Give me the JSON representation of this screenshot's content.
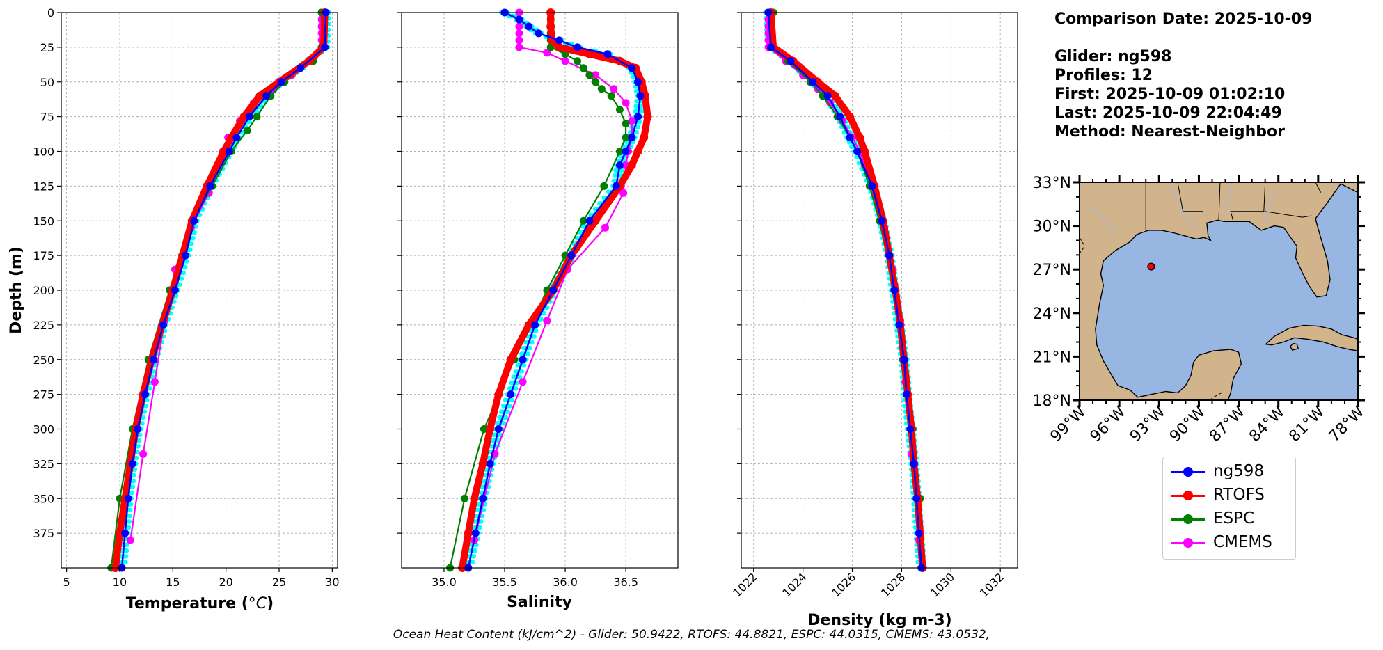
{
  "info": {
    "comparison_date": "Comparison Date: 2025-10-09",
    "glider": "Glider: ng598",
    "profiles": "Profiles: 12",
    "first": "First: 2025-10-09 01:02:10",
    "last": "Last: 2025-10-09 22:04:49",
    "method": "Method: Nearest-Neighbor"
  },
  "footer": "Ocean Heat Content (kJ/cm^2) - Glider: 50.9422,  RTOFS: 44.8821,  ESPC: 44.0315,  CMEMS: 43.0532,",
  "legend": [
    {
      "label": "ng598",
      "color": "#0000ff"
    },
    {
      "label": "RTOFS",
      "color": "#ff0000"
    },
    {
      "label": "ESPC",
      "color": "#008000"
    },
    {
      "label": "CMEMS",
      "color": "#ff00ff"
    }
  ],
  "map": {
    "lat_ticks": [
      "33°N",
      "30°N",
      "27°N",
      "24°N",
      "21°N",
      "18°N"
    ],
    "lon_ticks": [
      "99°W",
      "96°W",
      "93°W",
      "90°W",
      "87°W",
      "84°W",
      "81°W",
      "78°W"
    ],
    "lat_range": [
      18,
      33
    ],
    "lon_range": [
      -99,
      -78
    ],
    "marker": {
      "lon": -93.6,
      "lat": 27.2,
      "color": "#ff0000"
    },
    "land_color": "#d2b48c",
    "ocean_color": "#97b6e1"
  },
  "chart_data": [
    {
      "type": "line",
      "xlabel": "Temperature (°C)",
      "ylabel": "Depth (m)",
      "xlim": [
        4.5,
        30.5
      ],
      "ylim": [
        400,
        0
      ],
      "xticks": [
        5,
        10,
        15,
        20,
        25,
        30
      ],
      "yticks": [
        0,
        25,
        50,
        75,
        100,
        125,
        150,
        175,
        200,
        225,
        250,
        275,
        300,
        325,
        350,
        375
      ],
      "grid": true,
      "series": [
        {
          "name": "ng598",
          "color": "#0000ff",
          "depth": [
            0,
            25,
            40,
            50,
            60,
            75,
            90,
            100,
            125,
            150,
            175,
            200,
            225,
            250,
            275,
            300,
            325,
            350,
            375,
            400
          ],
          "values": [
            29.4,
            29.3,
            27,
            25.2,
            23.8,
            22.2,
            21,
            20.3,
            18.5,
            17,
            16.2,
            15.2,
            14.1,
            13.2,
            12.4,
            11.7,
            11.2,
            10.8,
            10.5,
            10.2
          ]
        },
        {
          "name": "RTOFS",
          "color": "#ff0000",
          "depth": [
            0,
            25,
            35,
            50,
            60,
            75,
            90,
            100,
            125,
            150,
            175,
            200,
            225,
            250,
            275,
            300,
            325,
            350,
            375,
            400
          ],
          "values": [
            29.3,
            29.2,
            27.8,
            25,
            23.2,
            21.7,
            20.5,
            19.8,
            18.2,
            16.8,
            15.9,
            15,
            14,
            13,
            12.2,
            11.5,
            11,
            10.5,
            10,
            9.6
          ]
        },
        {
          "name": "ESPC",
          "color": "#008000",
          "depth": [
            0,
            25,
            35,
            50,
            60,
            75,
            85,
            100,
            125,
            150,
            200,
            250,
            300,
            350,
            400
          ],
          "values": [
            29,
            29,
            28.2,
            25.5,
            24.2,
            22.9,
            22,
            20.5,
            18.7,
            16.8,
            14.7,
            12.7,
            11.2,
            10,
            9.2
          ]
        },
        {
          "name": "CMEMS",
          "color": "#ff00ff",
          "depth": [
            0,
            5,
            10,
            15,
            20,
            25,
            35,
            45,
            55,
            65,
            78,
            90,
            100,
            110,
            130,
            155,
            185,
            222,
            266,
            318,
            380
          ],
          "values": [
            29,
            29,
            29,
            29,
            29,
            29,
            28.2,
            26.2,
            24.5,
            22.6,
            21.3,
            20.2,
            19.7,
            19.2,
            18.4,
            16.7,
            15.2,
            14.2,
            13.3,
            12.2,
            11
          ]
        }
      ]
    },
    {
      "type": "line",
      "xlabel": "Salinity",
      "xlim": [
        34.65,
        36.93
      ],
      "ylim": [
        400,
        0
      ],
      "xticks": [
        35.0,
        35.5,
        36.0,
        36.5
      ],
      "yticks": [
        0,
        25,
        50,
        75,
        100,
        125,
        150,
        175,
        200,
        225,
        250,
        275,
        300,
        325,
        350,
        375
      ],
      "grid": true,
      "series": [
        {
          "name": "ng598",
          "color": "#0000ff",
          "depth": [
            0,
            5,
            10,
            15,
            20,
            25,
            30,
            40,
            50,
            60,
            75,
            90,
            100,
            110,
            125,
            150,
            175,
            200,
            225,
            250,
            275,
            300,
            325,
            350,
            375,
            400
          ],
          "values": [
            35.5,
            35.62,
            35.7,
            35.78,
            35.95,
            36.1,
            36.35,
            36.55,
            36.6,
            36.62,
            36.6,
            36.55,
            36.5,
            36.45,
            36.42,
            36.2,
            36.05,
            35.9,
            35.75,
            35.65,
            35.55,
            35.45,
            35.38,
            35.32,
            35.26,
            35.2
          ]
        },
        {
          "name": "RTOFS",
          "color": "#ff0000",
          "depth": [
            0,
            10,
            20,
            25,
            30,
            35,
            40,
            50,
            60,
            75,
            90,
            100,
            110,
            125,
            150,
            175,
            200,
            225,
            250,
            275,
            300,
            325,
            350,
            375,
            400
          ],
          "values": [
            35.88,
            35.88,
            35.89,
            35.95,
            36.2,
            36.45,
            36.58,
            36.63,
            36.66,
            36.68,
            36.65,
            36.6,
            36.55,
            36.45,
            36.25,
            36.05,
            35.9,
            35.7,
            35.55,
            35.45,
            35.38,
            35.32,
            35.25,
            35.2,
            35.15
          ]
        },
        {
          "name": "ESPC",
          "color": "#008000",
          "depth": [
            0,
            5,
            10,
            15,
            20,
            25,
            30,
            35,
            40,
            45,
            50,
            55,
            60,
            70,
            80,
            90,
            100,
            125,
            150,
            175,
            200,
            250,
            300,
            350,
            400
          ],
          "values": [
            35.88,
            35.88,
            35.88,
            35.88,
            35.88,
            35.88,
            36.0,
            36.1,
            36.15,
            36.2,
            36.25,
            36.3,
            36.38,
            36.45,
            36.5,
            36.5,
            36.45,
            36.32,
            36.15,
            36.0,
            35.85,
            35.58,
            35.33,
            35.17,
            35.05
          ]
        },
        {
          "name": "CMEMS",
          "color": "#ff00ff",
          "depth": [
            0,
            5,
            10,
            15,
            20,
            25,
            29,
            35,
            45,
            55,
            65,
            78,
            90,
            100,
            110,
            130,
            155,
            185,
            222,
            266,
            318,
            380
          ],
          "values": [
            35.62,
            35.62,
            35.62,
            35.62,
            35.62,
            35.62,
            35.85,
            36.0,
            36.25,
            36.4,
            36.5,
            36.55,
            36.55,
            36.52,
            36.5,
            36.48,
            36.33,
            36.02,
            35.85,
            35.65,
            35.42,
            35.25
          ]
        }
      ]
    },
    {
      "type": "line",
      "xlabel": "Density (kg m-3)",
      "xlim": [
        1021.5,
        1032.7
      ],
      "ylim": [
        400,
        0
      ],
      "xticks": [
        1022,
        1024,
        1026,
        1028,
        1030,
        1032
      ],
      "yticks": [
        0,
        25,
        50,
        75,
        100,
        125,
        150,
        175,
        200,
        225,
        250,
        275,
        300,
        325,
        350,
        375
      ],
      "grid": true,
      "series": [
        {
          "name": "ng598",
          "color": "#0000ff",
          "depth": [
            0,
            25,
            35,
            50,
            60,
            75,
            90,
            100,
            125,
            150,
            175,
            200,
            225,
            250,
            275,
            300,
            325,
            350,
            375,
            400
          ],
          "values": [
            1022.6,
            1022.7,
            1023.5,
            1024.4,
            1025,
            1025.5,
            1025.9,
            1026.2,
            1026.8,
            1027.2,
            1027.5,
            1027.7,
            1027.9,
            1028.1,
            1028.2,
            1028.35,
            1028.5,
            1028.6,
            1028.7,
            1028.8
          ]
        },
        {
          "name": "RTOFS",
          "color": "#ff0000",
          "depth": [
            0,
            25,
            35,
            50,
            60,
            75,
            90,
            100,
            125,
            150,
            175,
            200,
            225,
            250,
            275,
            300,
            325,
            350,
            375,
            400
          ],
          "values": [
            1022.7,
            1022.8,
            1023.6,
            1024.6,
            1025.3,
            1025.9,
            1026.3,
            1026.5,
            1026.9,
            1027.25,
            1027.5,
            1027.75,
            1027.95,
            1028.1,
            1028.25,
            1028.4,
            1028.5,
            1028.65,
            1028.75,
            1028.85
          ]
        },
        {
          "name": "ESPC",
          "color": "#008000",
          "depth": [
            0,
            25,
            35,
            50,
            60,
            75,
            90,
            100,
            125,
            150,
            200,
            250,
            300,
            350,
            400
          ],
          "values": [
            1022.8,
            1022.8,
            1023.4,
            1024.3,
            1024.8,
            1025.4,
            1025.9,
            1026.2,
            1026.7,
            1027.1,
            1027.7,
            1028.05,
            1028.45,
            1028.75,
            1028.85
          ]
        },
        {
          "name": "CMEMS",
          "color": "#ff00ff",
          "depth": [
            0,
            5,
            10,
            15,
            20,
            25,
            35,
            45,
            55,
            65,
            78,
            90,
            100,
            110,
            130,
            155,
            185,
            222,
            266,
            318,
            380
          ],
          "values": [
            1022.6,
            1022.6,
            1022.6,
            1022.6,
            1022.6,
            1022.6,
            1023.3,
            1024,
            1024.6,
            1025.1,
            1025.6,
            1026,
            1026.3,
            1026.5,
            1026.9,
            1027.3,
            1027.65,
            1027.95,
            1028.15,
            1028.4,
            1028.7
          ]
        }
      ]
    }
  ]
}
